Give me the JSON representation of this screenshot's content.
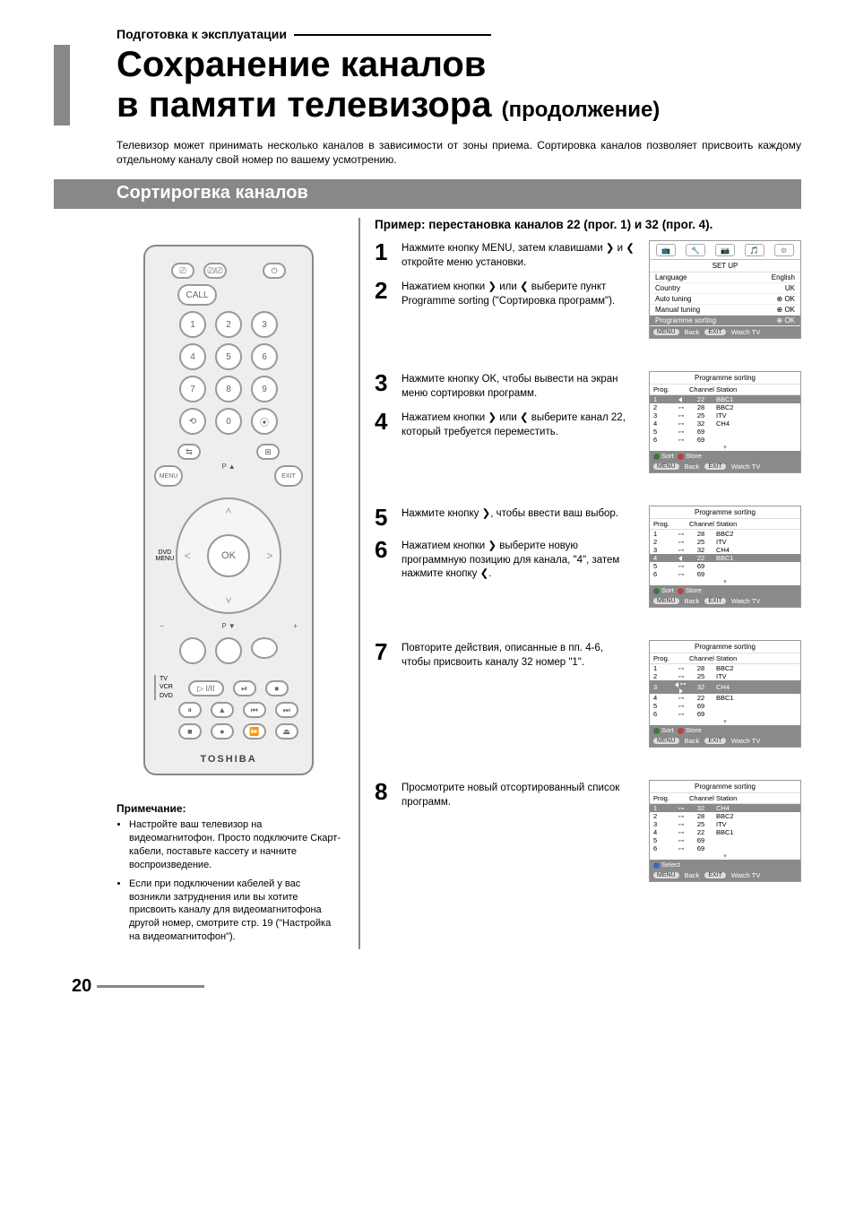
{
  "colors": {
    "accent_grey": "#888888",
    "osd_highlight": "#8a8a8a",
    "text": "#000000",
    "muted": "#666666",
    "dot_sort": "#3a7a3a",
    "dot_store": "#c04040",
    "dot_select": "#3a6ac0"
  },
  "page": {
    "breadcrumb": "Подготовка к эксплуатации",
    "title_line1": "Сохранение каналов",
    "title_line2_main": "в памяти телевизора",
    "title_line2_sub": "(продолжение)",
    "intro": "Телевизор может принимать несколько каналов в зависимости от зоны приема. Сортировка каналов позволяет присвоить каждому отдельному каналу свой номер по вашему усмотрению.",
    "section_header": "Сортирогвка каналов",
    "page_number": "20"
  },
  "remote": {
    "top_labels": [
      "⎚",
      "⎚/⎚",
      ""
    ],
    "call": "CALL",
    "power_icon": "⏻",
    "digits": [
      "1",
      "2",
      "3",
      "4",
      "5",
      "6",
      "7",
      "8",
      "9",
      "0"
    ],
    "side_labels_left": "⟲",
    "side_labels_right": "⦿",
    "swap_icon": "⇆",
    "menu": "MENU",
    "dvd_menu": "DVD\nMENU",
    "exit": "EXIT",
    "ok": "OK",
    "p_up": "P ▲",
    "p_down": "P ▼",
    "vol_minus": "−",
    "vol_plus": "+",
    "color_btns": [
      "",
      "",
      "",
      ""
    ],
    "mode_labels": "TV\nVCR\nDVD",
    "play_icon": "▷ I/II",
    "transport": [
      "⏯",
      "⏹",
      "⏮",
      "⏭",
      "⏸",
      "⏺",
      "⏪",
      "⏩",
      "■",
      "●",
      "▶▶",
      "⏏"
    ],
    "brand": "TOSHIBA"
  },
  "notes": {
    "heading": "Примечание:",
    "items": [
      "Настройте ваш телевизор на видеомагнитофон. Просто подключите Скарт-кабели, поставьте кассету и начните воспроизведение.",
      "Если при подключении кабелей у вас возникли затруднения или вы хотите присвоить каналу для видеомагнитофона другой номер, смотрите стр. 19 (\"Настройка на видеомагнитофон\")."
    ]
  },
  "example": {
    "title": "Пример: перестановка каналов 22 (прог. 1) и 32 (прог. 4).",
    "steps": [
      {
        "n": "1",
        "text": "Нажмите кнопку MENU, затем клавишами ❯ и ❮ откройте меню установки."
      },
      {
        "n": "2",
        "text": "Нажатием кнопки ❯ или ❮ выберите пункт Programme sorting (\"Сортировка программ\")."
      },
      {
        "n": "3",
        "text": "Нажмите кнопку OK, чтобы вывести на экран меню сортировки программ."
      },
      {
        "n": "4",
        "text": "Нажатием кнопки ❯ или ❮ выберите канал 22, который требуется переместить."
      },
      {
        "n": "5",
        "text": "Нажмите кнопку ❯, чтобы ввести ваш выбор."
      },
      {
        "n": "6",
        "text": "Нажатием кнопки ❯ выберите новую программную позицию для канала, \"4\", затем нажмите кнопку ❮."
      },
      {
        "n": "7",
        "text": "Повторите действия, описанные в пп. 4-6, чтобы присвоить каналу 32 номер \"1\"."
      },
      {
        "n": "8",
        "text": "Просмотрите новый отсортированный список программ."
      }
    ]
  },
  "osd_setup": {
    "tabs": [
      "📺",
      "🔧",
      "📷",
      "🎵",
      "⚙"
    ],
    "title": "SET UP",
    "rows": [
      {
        "label": "Language",
        "value": "English",
        "hl": false
      },
      {
        "label": "Country",
        "value": "UK",
        "hl": false
      },
      {
        "label": "Auto tuning",
        "value": "⊕ OK",
        "hl": false
      },
      {
        "label": "Manual tuning",
        "value": "⊕ OK",
        "hl": false
      },
      {
        "label": "Programme sorting",
        "value": "⊕ OK",
        "hl": true
      }
    ],
    "footer": {
      "menu": "MENU",
      "back": "Back",
      "exit": "EXIT",
      "watch": "Watch TV"
    }
  },
  "ps_common": {
    "title": "Programme sorting",
    "headers": [
      "Prog.",
      "",
      "Channel",
      "Station"
    ],
    "footer_sort": "Sort",
    "footer_store": "Store",
    "footer_select": "Select",
    "footer": {
      "menu": "MENU",
      "back": "Back",
      "exit": "EXIT",
      "watch": "Watch TV"
    }
  },
  "ps1": {
    "hl_index": 0,
    "arrows_on_hl": "left",
    "rows": [
      [
        "1",
        "22",
        "BBC1"
      ],
      [
        "2",
        "28",
        "BBC2"
      ],
      [
        "3",
        "25",
        "ITV"
      ],
      [
        "4",
        "32",
        "CH4"
      ],
      [
        "5",
        "69",
        ""
      ],
      [
        "6",
        "69",
        ""
      ]
    ]
  },
  "ps2": {
    "hl_index": 3,
    "arrows_on_hl": "left",
    "rows": [
      [
        "1",
        "28",
        "BBC2"
      ],
      [
        "2",
        "25",
        "ITV"
      ],
      [
        "3",
        "32",
        "CH4"
      ],
      [
        "4",
        "22",
        "BBC1"
      ],
      [
        "5",
        "69",
        ""
      ],
      [
        "6",
        "69",
        ""
      ]
    ]
  },
  "ps3": {
    "hl_index": 2,
    "arrows_on_hl": "both",
    "rows": [
      [
        "1",
        "28",
        "BBC2"
      ],
      [
        "2",
        "25",
        "ITV"
      ],
      [
        "3",
        "32",
        "CH4"
      ],
      [
        "4",
        "22",
        "BBC1"
      ],
      [
        "5",
        "69",
        ""
      ],
      [
        "6",
        "69",
        ""
      ]
    ]
  },
  "ps4": {
    "hl_index": 0,
    "arrows_on_hl": "none",
    "footer_mode": "select",
    "rows": [
      [
        "1",
        "32",
        "CH4"
      ],
      [
        "2",
        "28",
        "BBC2"
      ],
      [
        "3",
        "25",
        "ITV"
      ],
      [
        "4",
        "22",
        "BBC1"
      ],
      [
        "5",
        "69",
        ""
      ],
      [
        "6",
        "69",
        ""
      ]
    ]
  }
}
